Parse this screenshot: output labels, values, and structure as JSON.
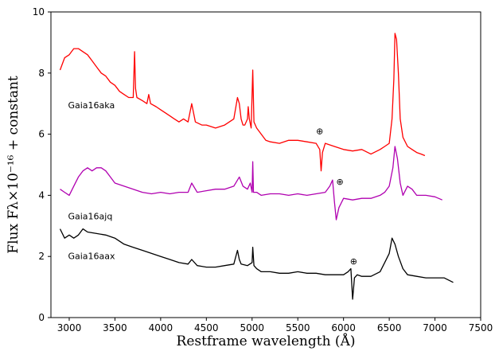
{
  "chart_data": {
    "type": "line",
    "title": "",
    "xlabel": "Restframe wavelength (Å)",
    "ylabel": "Flux Fλ×10⁻¹⁶ + constant",
    "xlim": [
      2800,
      7500
    ],
    "ylim": [
      0,
      10
    ],
    "xticks": [
      "3000",
      "3500",
      "4000",
      "4500",
      "5000",
      "5500",
      "6000",
      "6500",
      "7000",
      "7500"
    ],
    "yticks": [
      "0",
      "2",
      "4",
      "6",
      "8",
      "10"
    ],
    "grid": false,
    "series": [
      {
        "name": "Gaia16aka",
        "color": "#ff0000",
        "x": [
          2900,
          2950,
          3000,
          3050,
          3100,
          3150,
          3200,
          3250,
          3300,
          3350,
          3400,
          3450,
          3500,
          3550,
          3600,
          3650,
          3700,
          3715,
          3725,
          3740,
          3800,
          3850,
          3870,
          3890,
          3950,
          4000,
          4050,
          4100,
          4150,
          4200,
          4250,
          4300,
          4340,
          4380,
          4450,
          4500,
          4550,
          4600,
          4700,
          4800,
          4840,
          4860,
          4880,
          4900,
          4920,
          4950,
          4958,
          4970,
          4990,
          5007,
          5020,
          5050,
          5100,
          5150,
          5200,
          5300,
          5400,
          5500,
          5600,
          5700,
          5740,
          5755,
          5770,
          5800,
          5900,
          6000,
          6100,
          6200,
          6300,
          6400,
          6450,
          6500,
          6530,
          6550,
          6563,
          6580,
          6600,
          6620,
          6650,
          6700,
          6750,
          6800,
          6850,
          6890
        ],
        "y": [
          8.1,
          8.5,
          8.6,
          8.8,
          8.8,
          8.7,
          8.6,
          8.4,
          8.2,
          8.0,
          7.9,
          7.7,
          7.6,
          7.4,
          7.3,
          7.2,
          7.2,
          8.7,
          7.5,
          7.2,
          7.1,
          7.0,
          7.3,
          7.0,
          6.9,
          6.8,
          6.7,
          6.6,
          6.5,
          6.4,
          6.5,
          6.4,
          7.0,
          6.4,
          6.3,
          6.3,
          6.25,
          6.2,
          6.3,
          6.5,
          7.2,
          7.0,
          6.5,
          6.3,
          6.3,
          6.5,
          6.9,
          6.5,
          6.2,
          8.1,
          6.4,
          6.2,
          6.0,
          5.8,
          5.75,
          5.7,
          5.8,
          5.8,
          5.75,
          5.7,
          5.5,
          4.8,
          5.4,
          5.7,
          5.6,
          5.5,
          5.45,
          5.5,
          5.35,
          5.5,
          5.6,
          5.7,
          6.5,
          7.8,
          9.3,
          9.1,
          8.0,
          6.5,
          5.9,
          5.6,
          5.5,
          5.4,
          5.35,
          5.3
        ]
      },
      {
        "name": "Gaia16ajq",
        "color": "#b000b0",
        "x": [
          2900,
          2950,
          3000,
          3050,
          3100,
          3150,
          3200,
          3250,
          3300,
          3350,
          3400,
          3450,
          3500,
          3600,
          3700,
          3800,
          3900,
          4000,
          4100,
          4200,
          4300,
          4340,
          4400,
          4500,
          4600,
          4700,
          4800,
          4860,
          4900,
          4950,
          4980,
          5000,
          5007,
          5015,
          5050,
          5100,
          5200,
          5300,
          5400,
          5500,
          5600,
          5700,
          5800,
          5850,
          5880,
          5900,
          5920,
          5950,
          6000,
          6100,
          6200,
          6300,
          6400,
          6450,
          6500,
          6540,
          6563,
          6590,
          6620,
          6650,
          6700,
          6750,
          6800,
          6900,
          7000,
          7080
        ],
        "y": [
          4.2,
          4.1,
          4.0,
          4.3,
          4.6,
          4.8,
          4.9,
          4.8,
          4.9,
          4.9,
          4.8,
          4.6,
          4.4,
          4.3,
          4.2,
          4.1,
          4.05,
          4.1,
          4.05,
          4.1,
          4.1,
          4.4,
          4.1,
          4.15,
          4.2,
          4.2,
          4.3,
          4.6,
          4.3,
          4.2,
          4.4,
          4.1,
          5.1,
          4.1,
          4.1,
          4.0,
          4.05,
          4.05,
          4.0,
          4.05,
          4.0,
          4.05,
          4.1,
          4.3,
          4.5,
          3.8,
          3.2,
          3.6,
          3.9,
          3.85,
          3.9,
          3.9,
          4.0,
          4.1,
          4.3,
          4.9,
          5.6,
          5.2,
          4.4,
          4.0,
          4.3,
          4.2,
          4.0,
          4.0,
          3.95,
          3.85
        ]
      },
      {
        "name": "Gaia16aax",
        "color": "#000000",
        "x": [
          2900,
          2950,
          3000,
          3050,
          3100,
          3150,
          3200,
          3300,
          3400,
          3500,
          3600,
          3700,
          3800,
          3900,
          4000,
          4100,
          4200,
          4300,
          4340,
          4400,
          4500,
          4600,
          4700,
          4800,
          4840,
          4860,
          4880,
          4950,
          5000,
          5007,
          5020,
          5050,
          5100,
          5200,
          5300,
          5400,
          5500,
          5600,
          5700,
          5800,
          5900,
          6000,
          6050,
          6080,
          6100,
          6120,
          6150,
          6200,
          6300,
          6400,
          6450,
          6500,
          6530,
          6563,
          6600,
          6650,
          6700,
          6800,
          6900,
          7000,
          7100,
          7200
        ],
        "y": [
          2.9,
          2.6,
          2.7,
          2.6,
          2.7,
          2.9,
          2.8,
          2.75,
          2.7,
          2.6,
          2.4,
          2.3,
          2.2,
          2.1,
          2.0,
          1.9,
          1.8,
          1.75,
          1.9,
          1.7,
          1.65,
          1.65,
          1.7,
          1.75,
          2.2,
          1.9,
          1.75,
          1.7,
          1.8,
          2.3,
          1.7,
          1.6,
          1.5,
          1.5,
          1.45,
          1.45,
          1.5,
          1.45,
          1.45,
          1.4,
          1.4,
          1.4,
          1.5,
          1.6,
          0.6,
          1.3,
          1.4,
          1.35,
          1.35,
          1.5,
          1.8,
          2.1,
          2.6,
          2.4,
          2.0,
          1.6,
          1.4,
          1.35,
          1.3,
          1.3,
          1.3,
          1.15
        ]
      }
    ],
    "annotations": [
      {
        "text": "⊕",
        "x": 5740,
        "y": 6.0
      },
      {
        "text": "⊕",
        "x": 5960,
        "y": 4.35
      },
      {
        "text": "⊕",
        "x": 6110,
        "y": 1.75
      }
    ]
  }
}
